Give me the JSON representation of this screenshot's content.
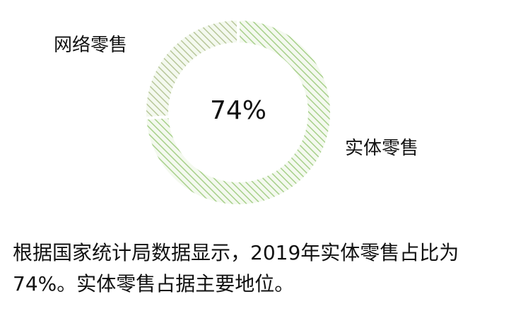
{
  "chart_data": {
    "type": "pie",
    "variant": "donut",
    "categories": [
      "实体零售",
      "网络零售"
    ],
    "values": [
      74,
      26
    ],
    "value_unit": "%",
    "center_label": "74%",
    "legend": "none",
    "colors": {
      "stripe_primary": "#a7d08a",
      "stripe_secondary": "#b8c79a",
      "stripe_background": "#f4f9ef",
      "separator": "#ffffff"
    }
  },
  "caption": {
    "text": "根据国家统计局数据显示，2019年实体零售占比为74%。实体零售占据主要地位。"
  }
}
